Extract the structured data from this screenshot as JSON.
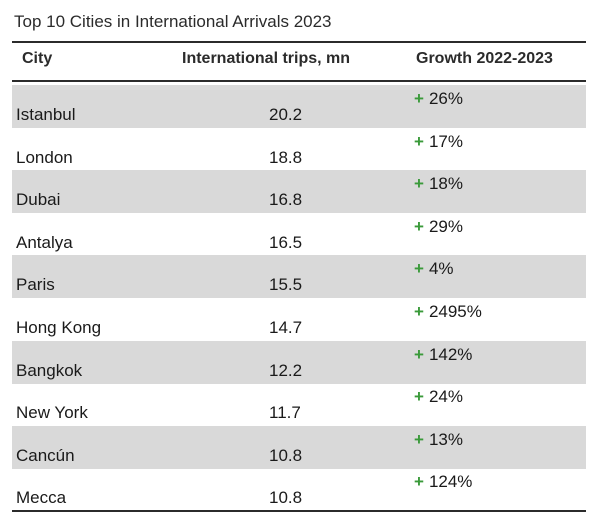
{
  "title": "Top 10 Cities in International Arrivals 2023",
  "columns": {
    "city": "City",
    "trips": "International trips, mn",
    "growth": "Growth 2022-2023"
  },
  "growth_prefix": "+",
  "colors": {
    "shaded_row": "#d9d9d9",
    "plus_sign": "#3a9a3a",
    "rule": "#2b2b2b"
  },
  "rows": [
    {
      "city": "Istanbul",
      "trips": "20.2",
      "growth": "26%"
    },
    {
      "city": "London",
      "trips": "18.8",
      "growth": "17%"
    },
    {
      "city": "Dubai",
      "trips": "16.8",
      "growth": "18%"
    },
    {
      "city": "Antalya",
      "trips": "16.5",
      "growth": "29%"
    },
    {
      "city": "Paris",
      "trips": "15.5",
      "growth": "4%"
    },
    {
      "city": "Hong Kong",
      "trips": "14.7",
      "growth": "2495%"
    },
    {
      "city": "Bangkok",
      "trips": "12.2",
      "growth": "142%"
    },
    {
      "city": "New York",
      "trips": "11.7",
      "growth": "24%"
    },
    {
      "city": "Cancún",
      "trips": "10.8",
      "growth": "13%"
    },
    {
      "city": "Mecca",
      "trips": "10.8",
      "growth": "124%"
    }
  ],
  "chart_data": {
    "type": "table",
    "title": "Top 10 Cities in International Arrivals 2023",
    "columns": [
      "City",
      "International trips, mn",
      "Growth 2022-2023"
    ],
    "categories": [
      "Istanbul",
      "London",
      "Dubai",
      "Antalya",
      "Paris",
      "Hong Kong",
      "Bangkok",
      "New York",
      "Cancún",
      "Mecca"
    ],
    "series": [
      {
        "name": "International trips, mn",
        "values": [
          20.2,
          18.8,
          16.8,
          16.5,
          15.5,
          14.7,
          12.2,
          11.7,
          10.8,
          10.8
        ]
      },
      {
        "name": "Growth 2022-2023",
        "values": [
          26,
          17,
          18,
          29,
          4,
          2495,
          142,
          24,
          13,
          124
        ]
      }
    ]
  }
}
